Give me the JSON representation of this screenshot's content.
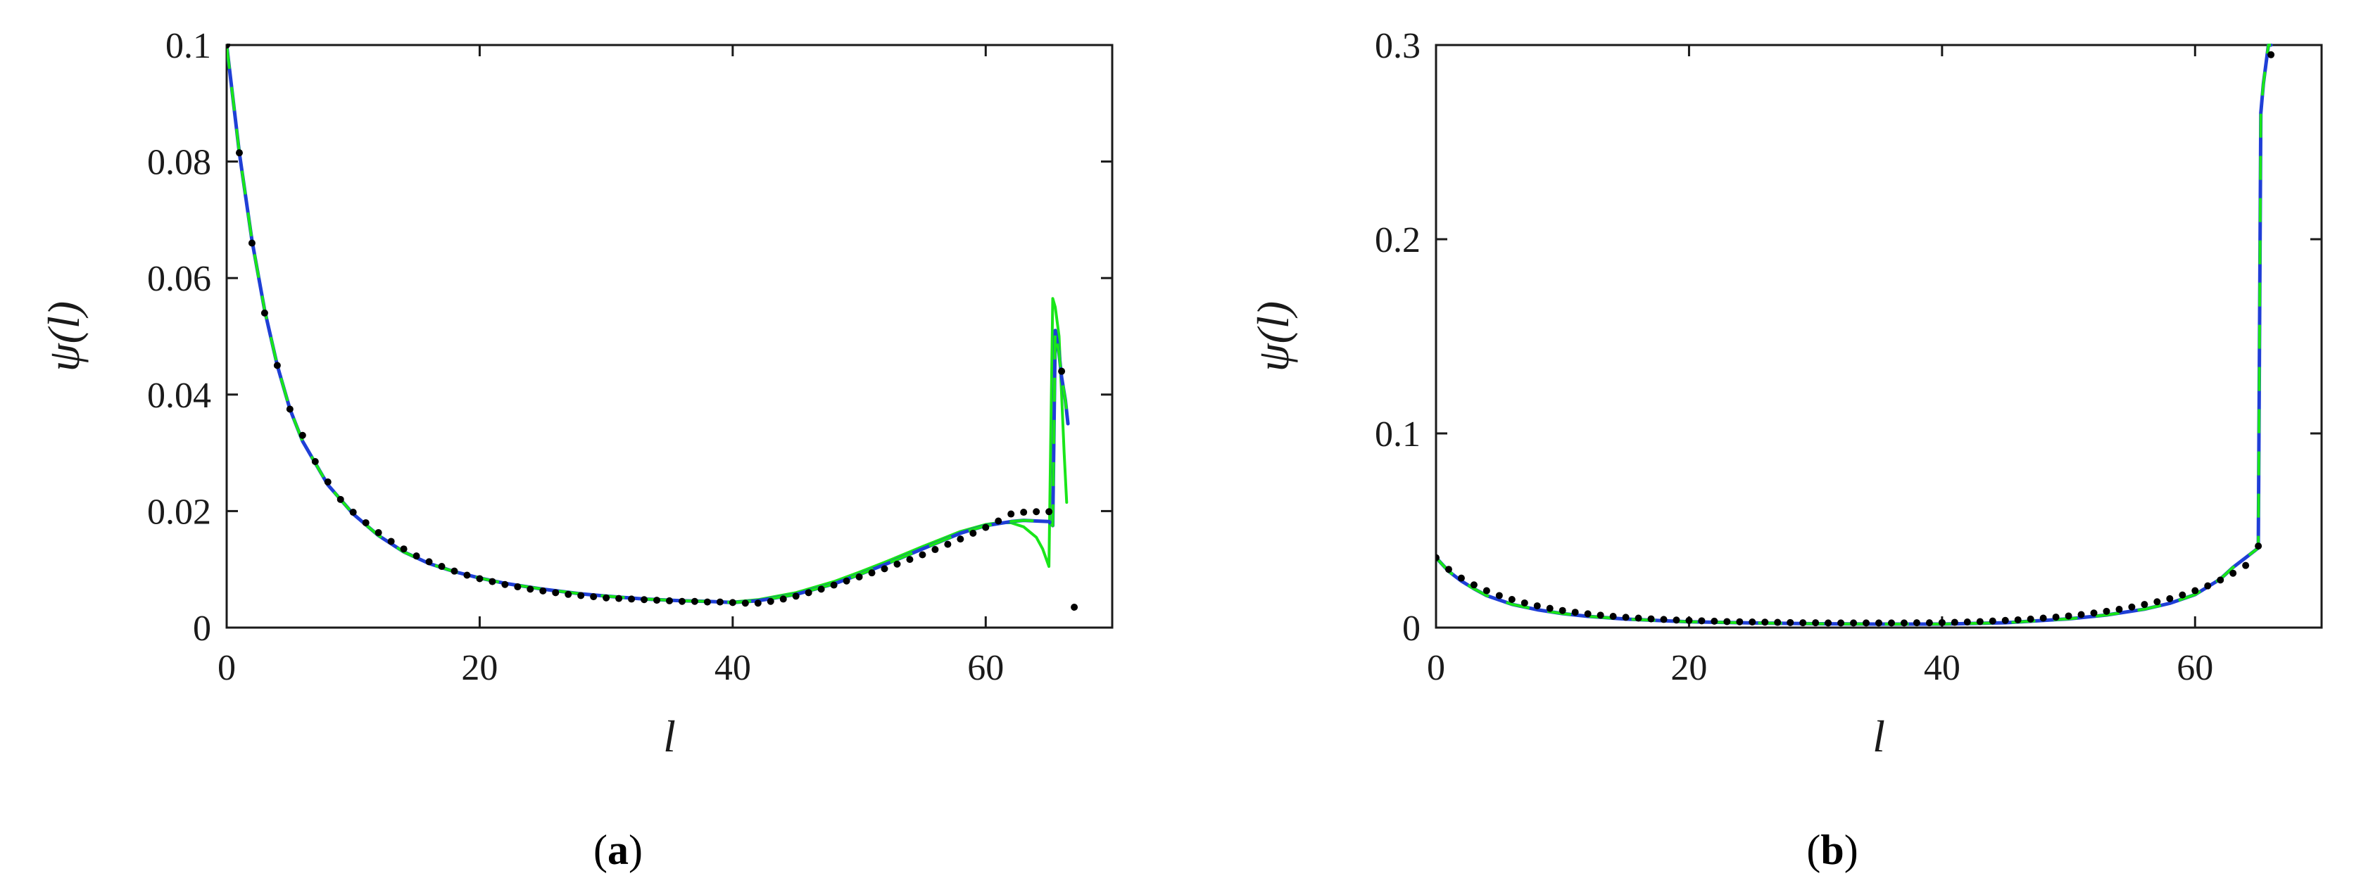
{
  "colors": {
    "axes": "#1a1a1a",
    "solid_line": "#1f3fd6",
    "dashed_line": "#19e619",
    "green_line": "#19e619",
    "dots": "#000000"
  },
  "chart_data": [
    {
      "type": "line",
      "panel_label": "a",
      "xlabel": "l",
      "ylabel": "ψ(l)",
      "xlim": [
        0,
        70
      ],
      "ylim": [
        0,
        0.1
      ],
      "xticks": [
        0,
        20,
        40,
        60
      ],
      "yticks": [
        0,
        0.02,
        0.04,
        0.06,
        0.08,
        0.1
      ],
      "xtick_labels": [
        "0",
        "20",
        "40",
        "60"
      ],
      "ytick_labels": [
        "0",
        "0.02",
        "0.04",
        "0.06",
        "0.08",
        "0.1"
      ],
      "grid": false,
      "series": [
        {
          "style": "solid-blue",
          "x": [
            0,
            1,
            2,
            3,
            4,
            5,
            6,
            8,
            10,
            12,
            14,
            16,
            18,
            20,
            22,
            25,
            28,
            30,
            33,
            36,
            38,
            40,
            42,
            45,
            48,
            50,
            52,
            55,
            58,
            60,
            62,
            63,
            64,
            65,
            65.3,
            65.5,
            65.8,
            66,
            66.3,
            66.5
          ],
          "y": [
            0.1,
            0.0815,
            0.0665,
            0.0545,
            0.045,
            0.0375,
            0.032,
            0.0245,
            0.0195,
            0.0158,
            0.013,
            0.011,
            0.0096,
            0.0085,
            0.0076,
            0.0066,
            0.0058,
            0.0054,
            0.0049,
            0.0046,
            0.0045,
            0.0043,
            0.0046,
            0.0057,
            0.0075,
            0.0091,
            0.0108,
            0.0135,
            0.0162,
            0.0175,
            0.0182,
            0.0184,
            0.0183,
            0.0182,
            0.0175,
            0.051,
            0.047,
            0.043,
            0.039,
            0.035
          ]
        },
        {
          "style": "dashed-green",
          "x": [
            0,
            1,
            2,
            3,
            4,
            5,
            6,
            8,
            10,
            12,
            14,
            16,
            18,
            20,
            22,
            25,
            28,
            30,
            33,
            36,
            38,
            40,
            42,
            45,
            48,
            50,
            52,
            55,
            58,
            60,
            62,
            63,
            64,
            65,
            65.3,
            65.5,
            65.8,
            66,
            66.3,
            66.5
          ],
          "y": [
            0.1,
            0.0815,
            0.0665,
            0.0545,
            0.045,
            0.0375,
            0.032,
            0.0245,
            0.0195,
            0.0158,
            0.013,
            0.011,
            0.0096,
            0.0085,
            0.0076,
            0.0066,
            0.0058,
            0.0054,
            0.0049,
            0.0046,
            0.0045,
            0.0043,
            0.0046,
            0.0057,
            0.0075,
            0.0091,
            0.0108,
            0.0135,
            0.0162,
            0.0175,
            0.0182,
            0.0184,
            0.0183,
            0.0182,
            0.0175,
            0.051,
            0.047,
            0.043,
            0.039,
            0.035
          ]
        },
        {
          "style": "solid-green",
          "x": [
            0,
            1,
            2,
            3,
            4,
            5,
            6,
            8,
            10,
            12,
            14,
            16,
            18,
            20,
            22,
            25,
            28,
            30,
            33,
            36,
            38,
            40,
            42,
            45,
            48,
            50,
            52,
            55,
            58,
            60,
            61,
            62,
            63,
            64,
            64.5,
            65,
            65.3,
            65.5,
            65.8,
            66,
            66.2,
            66.4
          ],
          "y": [
            0.1,
            0.0815,
            0.0665,
            0.0545,
            0.045,
            0.0375,
            0.032,
            0.0245,
            0.0195,
            0.0158,
            0.013,
            0.011,
            0.0096,
            0.0085,
            0.0076,
            0.0066,
            0.0058,
            0.0054,
            0.0049,
            0.0046,
            0.0045,
            0.0044,
            0.0048,
            0.006,
            0.0079,
            0.0095,
            0.0112,
            0.0139,
            0.0165,
            0.0177,
            0.018,
            0.018,
            0.0173,
            0.0155,
            0.0135,
            0.0105,
            0.0565,
            0.055,
            0.05,
            0.04,
            0.03,
            0.0215
          ]
        },
        {
          "style": "dots-black",
          "x": [
            0,
            1,
            2,
            3,
            4,
            5,
            6,
            7,
            8,
            9,
            10,
            11,
            12,
            13,
            14,
            15,
            16,
            17,
            18,
            19,
            20,
            21,
            22,
            23,
            24,
            25,
            26,
            27,
            28,
            29,
            30,
            31,
            32,
            33,
            34,
            35,
            36,
            37,
            38,
            39,
            40,
            41,
            42,
            43,
            44,
            45,
            46,
            47,
            48,
            49,
            50,
            51,
            52,
            53,
            54,
            55,
            56,
            57,
            58,
            59,
            60,
            61,
            62,
            63,
            64,
            65,
            66,
            67
          ],
          "y": [
            0.1,
            0.0815,
            0.066,
            0.054,
            0.045,
            0.0375,
            0.033,
            0.0285,
            0.025,
            0.022,
            0.0198,
            0.018,
            0.0163,
            0.0148,
            0.0135,
            0.0123,
            0.0113,
            0.0105,
            0.0097,
            0.009,
            0.0084,
            0.0079,
            0.0074,
            0.007,
            0.0066,
            0.0063,
            0.006,
            0.0057,
            0.0055,
            0.0053,
            0.0051,
            0.005,
            0.0049,
            0.0048,
            0.0047,
            0.0046,
            0.0045,
            0.0045,
            0.0044,
            0.0044,
            0.0043,
            0.0042,
            0.0042,
            0.0045,
            0.0049,
            0.0054,
            0.006,
            0.0066,
            0.0073,
            0.008,
            0.0087,
            0.0094,
            0.0101,
            0.0109,
            0.0117,
            0.0125,
            0.0134,
            0.0143,
            0.0152,
            0.0162,
            0.0172,
            0.0183,
            0.0195,
            0.0198,
            0.0199,
            0.0199,
            0.044,
            0.0035
          ]
        }
      ]
    },
    {
      "type": "line",
      "panel_label": "b",
      "xlabel": "l",
      "ylabel": "ψ(l)",
      "xlim": [
        0,
        70
      ],
      "ylim": [
        0,
        0.3
      ],
      "xticks": [
        0,
        20,
        40,
        60
      ],
      "yticks": [
        0,
        0.1,
        0.2,
        0.3
      ],
      "xtick_labels": [
        "0",
        "20",
        "40",
        "60"
      ],
      "ytick_labels": [
        "0",
        "0.1",
        "0.2",
        "0.3"
      ],
      "grid": false,
      "series": [
        {
          "style": "solid-blue",
          "x": [
            0,
            1,
            2,
            3,
            4,
            6,
            8,
            10,
            12,
            15,
            18,
            20,
            25,
            30,
            35,
            40,
            45,
            50,
            53,
            56,
            58,
            60,
            62,
            63,
            64,
            65,
            65.2,
            65.4,
            65.6,
            65.8,
            66
          ],
          "y": [
            0.036,
            0.029,
            0.024,
            0.02,
            0.0165,
            0.012,
            0.0092,
            0.0072,
            0.0058,
            0.0044,
            0.0035,
            0.003,
            0.0024,
            0.002,
            0.0018,
            0.0018,
            0.0025,
            0.0045,
            0.0065,
            0.0095,
            0.0125,
            0.017,
            0.025,
            0.031,
            0.036,
            0.041,
            0.265,
            0.28,
            0.29,
            0.3,
            0.3
          ]
        },
        {
          "style": "dashed-green",
          "x": [
            0,
            1,
            2,
            3,
            4,
            6,
            8,
            10,
            12,
            15,
            18,
            20,
            25,
            30,
            35,
            40,
            45,
            50,
            53,
            56,
            58,
            60,
            62,
            63,
            64,
            65,
            65.2,
            65.4,
            65.6,
            65.8,
            66
          ],
          "y": [
            0.036,
            0.029,
            0.024,
            0.02,
            0.0165,
            0.012,
            0.0092,
            0.0072,
            0.0058,
            0.0044,
            0.0035,
            0.003,
            0.0024,
            0.002,
            0.0018,
            0.0018,
            0.0025,
            0.0045,
            0.0065,
            0.0095,
            0.0125,
            0.017,
            0.025,
            0.031,
            0.036,
            0.041,
            0.265,
            0.28,
            0.29,
            0.3,
            0.3
          ]
        },
        {
          "style": "dots-black",
          "x": [
            0,
            1,
            2,
            3,
            4,
            5,
            6,
            7,
            8,
            9,
            10,
            11,
            12,
            13,
            14,
            15,
            16,
            17,
            18,
            19,
            20,
            21,
            22,
            23,
            24,
            25,
            26,
            27,
            28,
            29,
            30,
            31,
            32,
            33,
            34,
            35,
            36,
            37,
            38,
            39,
            40,
            41,
            42,
            43,
            44,
            45,
            46,
            47,
            48,
            49,
            50,
            51,
            52,
            53,
            54,
            55,
            56,
            57,
            58,
            59,
            60,
            61,
            62,
            63,
            64,
            65,
            66
          ],
          "y": [
            0.036,
            0.03,
            0.0255,
            0.022,
            0.019,
            0.0165,
            0.0145,
            0.0127,
            0.0112,
            0.0099,
            0.0088,
            0.0079,
            0.0071,
            0.0064,
            0.0058,
            0.0053,
            0.0049,
            0.0045,
            0.0042,
            0.0039,
            0.0037,
            0.0035,
            0.0033,
            0.0031,
            0.003,
            0.0029,
            0.0028,
            0.0027,
            0.0026,
            0.0025,
            0.0025,
            0.0024,
            0.0024,
            0.0024,
            0.0024,
            0.0024,
            0.0024,
            0.0024,
            0.0025,
            0.0025,
            0.0026,
            0.0027,
            0.0029,
            0.0031,
            0.0034,
            0.0037,
            0.004,
            0.0044,
            0.0049,
            0.0054,
            0.006,
            0.0067,
            0.0075,
            0.0084,
            0.0094,
            0.0106,
            0.0119,
            0.0133,
            0.0149,
            0.0168,
            0.019,
            0.0215,
            0.0245,
            0.028,
            0.032,
            0.042,
            0.295
          ]
        }
      ]
    }
  ]
}
